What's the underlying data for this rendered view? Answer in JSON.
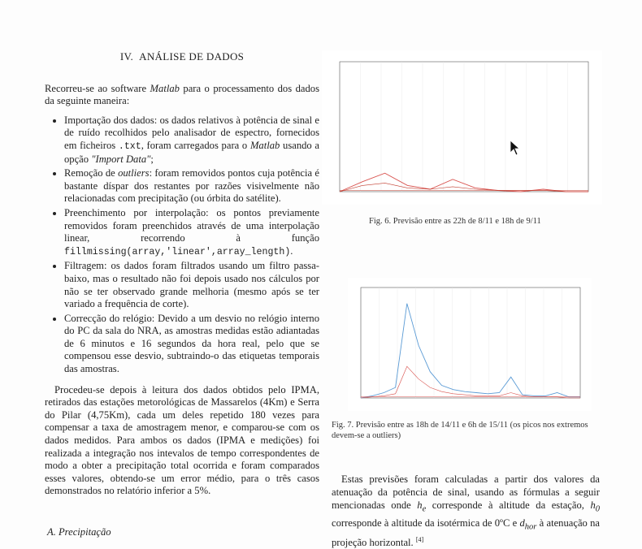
{
  "left": {
    "section_number": "IV.",
    "section_title_first": "A",
    "section_title_rest": "NÁLISE DE DADOS",
    "intro_before": "Recorreu-se ao software ",
    "intro_em": "Matlab",
    "intro_after": " para o processamento dos dados da seguinte maneira:",
    "bullets": {
      "b1_a": "Importação dos dados: os dados relativos à potência de sinal e de ruído recolhidos pelo analisador de espectro, fornecidos em ficheiros ",
      "b1_mono": ".txt",
      "b1_b": ", foram carregados para o ",
      "b1_em": "Matlab",
      "b1_c": " usando a opção ",
      "b1_em2": "\"Import Data\"",
      "b1_d": ";",
      "b2_a": "Remoção de ",
      "b2_em": "outliers",
      "b2_b": ": foram removidos pontos cuja potência é bastante díspar dos restantes por razões visivelmente não relacionadas com precipitação (ou órbita do satélite).",
      "b3_a": "Preenchimento por interpolação: os pontos previamente removidos foram preenchidos através de uma interpolação linear, recorrendo à função ",
      "b3_mono": "fillmissing(array,'linear',array_length)",
      "b3_b": ".",
      "b4": "Filtragem: os dados foram filtrados usando um filtro passa-baixo, mas o resultado não foi depois usado nos cálculos por não se ter observado grande melhoria (mesmo após se ter variado a frequência de corte).",
      "b5": "Correcção do relógio: Devido a um desvio no relógio interno do PC da sala do NRA, as amostras medidas estão adiantadas de 6 minutos e 16 segundos da hora real, pelo que se compensou esse desvio, subtraindo-o das etiquetas temporais das amostras."
    },
    "para2": "Procedeu-se depois à leitura dos dados obtidos pelo IPMA, retirados das estações metorológicas de Massarelos (4Km) e Serra do Pilar (4,75Km), cada um deles repetido 180 vezes para compensar a taxa de amostragem menor, e comparou-se com os dados medidos. Para ambos os dados (IPMA e medições) foi realizada a integração nos intevalos de tempo correspondentes de modo a obter a precipitação total ocorrida e foram comparados esses valores, obtendo-se um error médio, para o três casos demonstrados no relatório inferior a 5%.",
    "subsection": "A. Precipitação"
  },
  "fig6": {
    "caption": "Fig. 6.  Previsão entre as 22h de 8/11 e 18h de 9/11"
  },
  "fig7": {
    "caption": "Fig. 7.  Previsão entre as 18h de 14/11 e 6h de 15/11 (os picos nos extremos devem-se a outliers)"
  },
  "right_text": {
    "before_he": "Estas previsões foram calculadas a partir dos valores da atenuação da potência de sinal, usando as fórmulas a seguir mencionadas onde ",
    "he": "h",
    "he_sub": "e",
    "mid1": " corresponde à altitude da estação, ",
    "h0": "h",
    "h0_sub": "0",
    "mid2": " corresponde à altitude da isotérmica de 0ºC e ",
    "dhor": "d",
    "dhor_sub": "hor",
    "end": " à atenuação na projeção horizontal.",
    "ref": "[4]"
  },
  "chart_data": [
    {
      "type": "line",
      "title": "",
      "series": [
        {
          "values": [
            0,
            0.08,
            0.15,
            0.05,
            0.02,
            0.1,
            0.03,
            0.01,
            0.0,
            0.02,
            0.0,
            0.0
          ]
        },
        {
          "values": [
            0,
            0.05,
            0.07,
            0.03,
            0.02,
            0.04,
            0.02,
            0.01,
            0.01,
            0.01,
            0.0,
            0.0
          ]
        }
      ],
      "colors": [
        "#d9534f",
        "#c0392b"
      ]
    },
    {
      "type": "line",
      "title": "",
      "series": [
        {
          "values": [
            0,
            0.02,
            0.05,
            0.1,
            0.9,
            0.5,
            0.25,
            0.12,
            0.08,
            0.06,
            0.05,
            0.04,
            0.05,
            0.2,
            0.03,
            0.02,
            0.02,
            0.05,
            0.01,
            0.01
          ]
        },
        {
          "values": [
            0,
            0.01,
            0.02,
            0.04,
            0.3,
            0.18,
            0.1,
            0.06,
            0.04,
            0.03,
            0.02,
            0.02,
            0.02,
            0.05,
            0.02,
            0.01,
            0.01,
            0.01,
            0.0,
            0.0
          ]
        }
      ],
      "colors": [
        "#5b9bd5",
        "#d9534f"
      ]
    }
  ]
}
